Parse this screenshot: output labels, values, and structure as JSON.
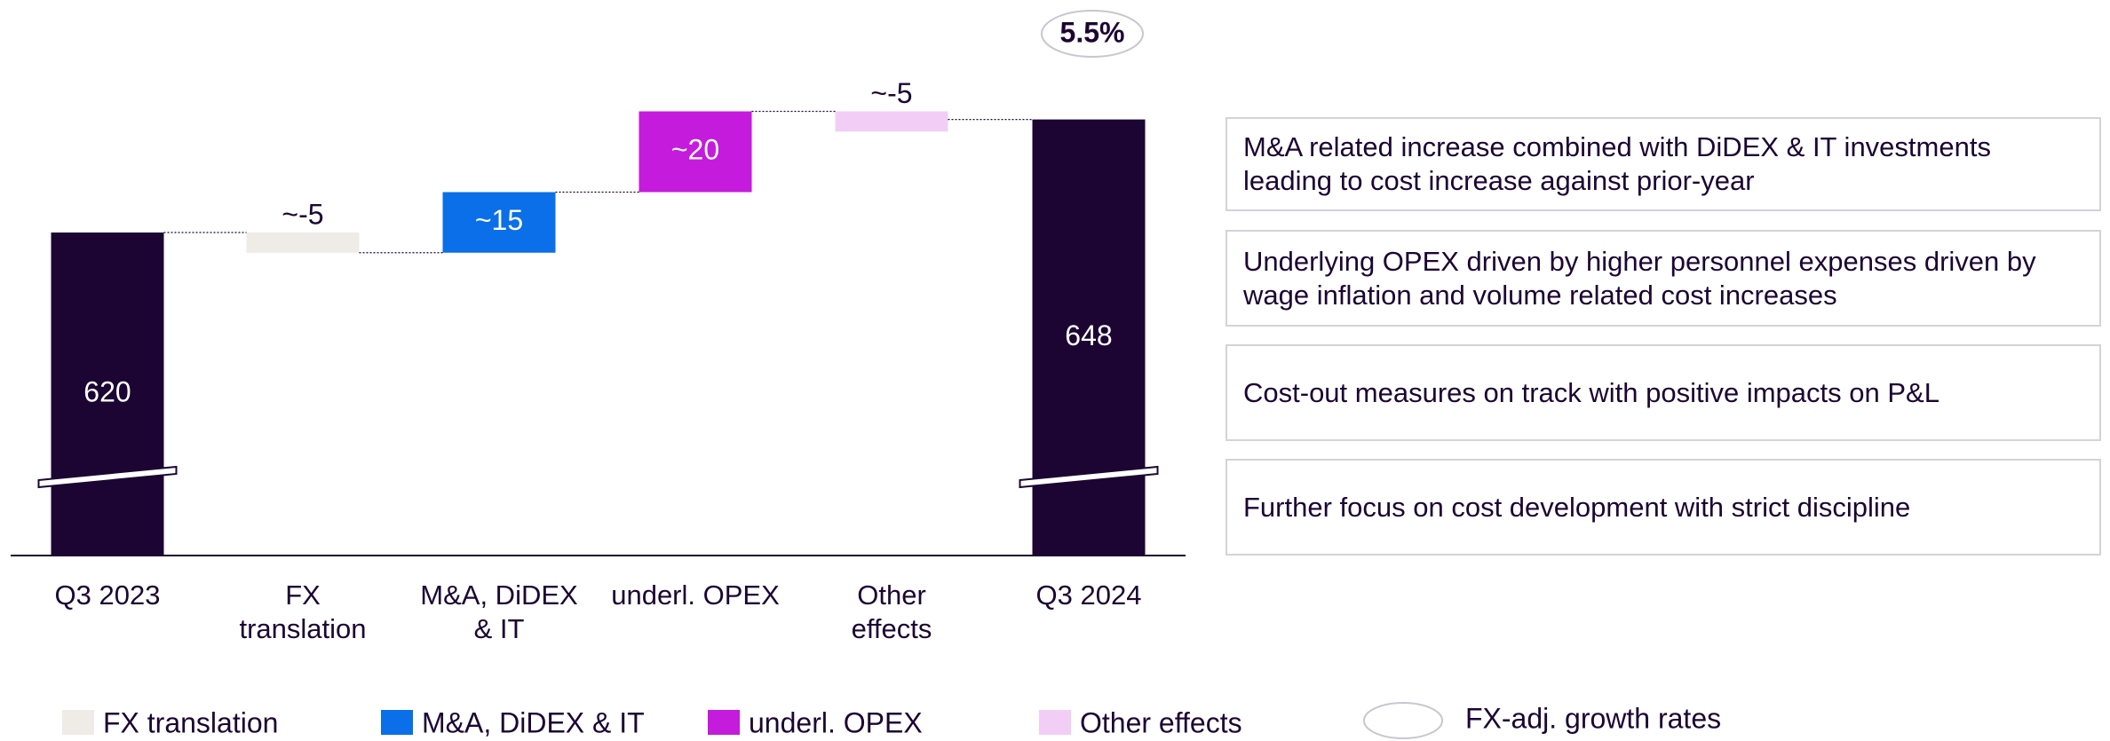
{
  "chart_data": {
    "type": "waterfall",
    "categories": [
      "Q3 2023",
      "FX translation",
      "M&A, DiDEX & IT",
      "underl. OPEX",
      "Other effects",
      "Q3 2024"
    ],
    "values": [
      620,
      -5,
      15,
      20,
      -5,
      648
    ],
    "value_labels": [
      "620",
      "~-5",
      "~15",
      "~20",
      "~-5",
      "648"
    ],
    "is_total": [
      true,
      false,
      false,
      false,
      false,
      true
    ],
    "colors": [
      "#1c0533",
      "#efebe6",
      "#0a6fe8",
      "#c41bdc",
      "#f2cdf6",
      "#1c0533"
    ],
    "ylim": [
      540,
      660
    ],
    "growth_annotation": "5.5%",
    "legend": [
      {
        "name": "FX translation",
        "color": "#efebe6"
      },
      {
        "name": "M&A, DiDEX & IT",
        "color": "#0a6fe8"
      },
      {
        "name": "underl. OPEX",
        "color": "#c41bdc"
      },
      {
        "name": "Other effects",
        "color": "#f2cdf6"
      },
      {
        "name": "FX-adj. growth rates",
        "shape": "ellipse"
      }
    ]
  },
  "notes": [
    "M&A related increase combined with DiDEX & IT investments leading to cost increase against prior-year",
    "Underlying OPEX driven by higher personnel expenses driven by wage inflation and volume related cost increases",
    "Cost-out measures on track with positive impacts on P&L",
    "Further focus on cost development with strict discipline"
  ]
}
